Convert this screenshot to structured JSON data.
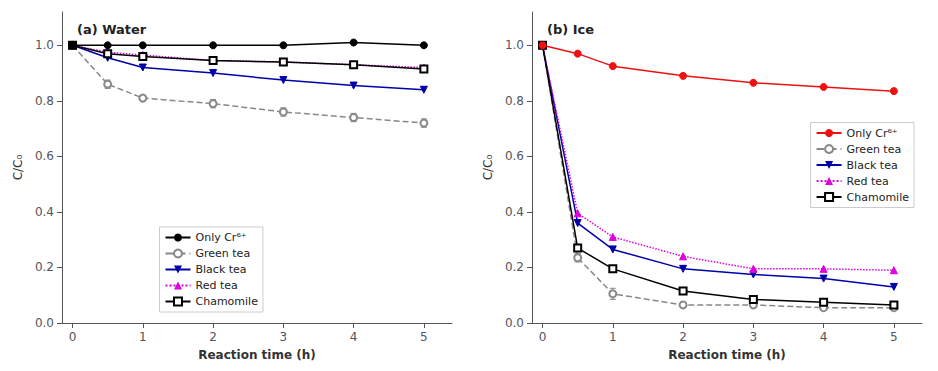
{
  "chart_data": [
    {
      "type": "line",
      "title": "(a) Water",
      "xlabel": "Reaction time (h)",
      "ylabel": "C/C₀",
      "x": [
        0,
        0.5,
        1,
        2,
        3,
        4,
        5
      ],
      "series": [
        {
          "name": "Only Cr⁶⁺",
          "color": "#000000",
          "marker": "circle",
          "line_style": "solid",
          "values": [
            1.0,
            1.0,
            1.0,
            1.0,
            1.0,
            1.01,
            1.0
          ]
        },
        {
          "name": "Green tea",
          "color": "#888888",
          "marker": "open_circle",
          "line_style": "dashed",
          "values": [
            1.0,
            0.86,
            0.81,
            0.79,
            0.76,
            0.74,
            0.72
          ],
          "errors": [
            0,
            0.015,
            0.01,
            0.015,
            0.015,
            0.015,
            0.015
          ]
        },
        {
          "name": "Black tea",
          "color": "#0000aa",
          "marker": "triangle_down",
          "line_style": "solid",
          "values": [
            1.0,
            0.955,
            0.92,
            0.9,
            0.875,
            0.855,
            0.84
          ]
        },
        {
          "name": "Red tea",
          "color": "#dd00dd",
          "marker": "triangle_up",
          "line_style": "dotted",
          "values": [
            1.0,
            0.975,
            0.965,
            0.945,
            0.94,
            0.93,
            0.92
          ]
        },
        {
          "name": "Chamomile",
          "color": "#000000",
          "marker": "open_square",
          "line_style": "solid",
          "values": [
            1.0,
            0.97,
            0.96,
            0.945,
            0.94,
            0.93,
            0.915
          ]
        }
      ],
      "xlim": [
        -0.15,
        5.4
      ],
      "xticks": [
        0,
        1,
        2,
        3,
        4,
        5
      ],
      "ylim": [
        0.0,
        1.12
      ],
      "yticks": [
        {
          "value": 0,
          "label": "0.0"
        },
        0.2,
        0.4,
        0.6,
        0.8,
        {
          "value": 1,
          "label": "1.0"
        }
      ],
      "grid": false,
      "legend": "lower left"
    },
    {
      "type": "line",
      "title": "(b) Ice",
      "xlabel": "Reaction time (h)",
      "ylabel": "C/C₀",
      "x": [
        0,
        0.5,
        1,
        2,
        3,
        4,
        5
      ],
      "series": [
        {
          "name": "Only Cr⁶⁺",
          "color": "#ee1111",
          "marker": "circle",
          "line_style": "solid",
          "values": [
            1.0,
            0.97,
            0.925,
            0.89,
            0.865,
            0.85,
            0.835
          ]
        },
        {
          "name": "Green tea",
          "color": "#888888",
          "marker": "open_circle",
          "line_style": "dashed",
          "values": [
            1.0,
            0.235,
            0.105,
            0.065,
            0.065,
            0.055,
            0.055
          ],
          "errors": [
            0,
            0.015,
            0.02,
            0.01,
            0.01,
            0.01,
            0.01
          ]
        },
        {
          "name": "Black tea",
          "color": "#0000aa",
          "marker": "triangle_down",
          "line_style": "solid",
          "values": [
            1.0,
            0.36,
            0.265,
            0.195,
            0.175,
            0.16,
            0.13
          ]
        },
        {
          "name": "Red tea",
          "color": "#dd00dd",
          "marker": "triangle_up",
          "line_style": "dotted",
          "values": [
            1.0,
            0.395,
            0.31,
            0.24,
            0.195,
            0.195,
            0.19
          ]
        },
        {
          "name": "Chamomile",
          "color": "#000000",
          "marker": "open_square",
          "line_style": "solid",
          "values": [
            1.0,
            0.27,
            0.195,
            0.115,
            0.085,
            0.075,
            0.065
          ]
        }
      ],
      "xlim": [
        -0.15,
        5.4
      ],
      "xticks": [
        0,
        1,
        2,
        3,
        4,
        5
      ],
      "ylim": [
        0.0,
        1.12
      ],
      "yticks": [
        {
          "value": 0,
          "label": "0.0"
        },
        0.2,
        0.4,
        0.6,
        0.8,
        {
          "value": 1,
          "label": "1.0"
        }
      ],
      "grid": false,
      "legend": "right"
    }
  ]
}
